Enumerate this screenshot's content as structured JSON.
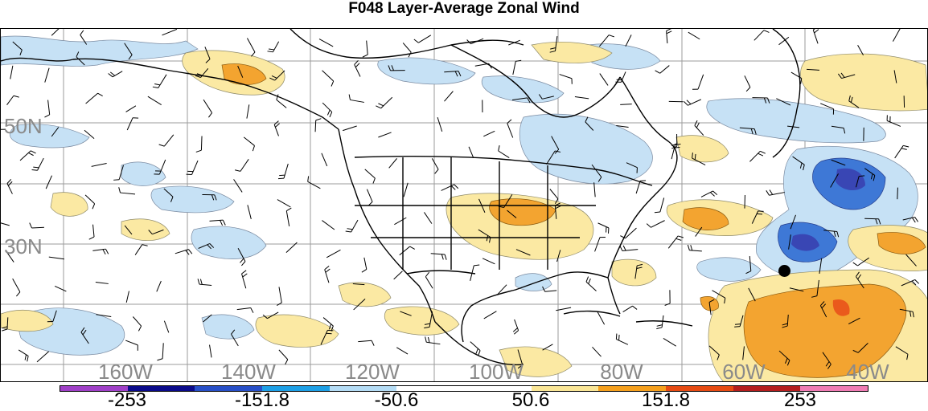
{
  "title": "F048 Layer-Average Zonal Wind",
  "latitude_labels": [
    "50N",
    "30N"
  ],
  "longitude_labels": [
    "160W",
    "140W",
    "120W",
    "100W",
    "80W",
    "60W",
    "40W"
  ],
  "colorbar": {
    "colors": [
      "#a040c8",
      "#0a0a8a",
      "#2850c8",
      "#1ea0e6",
      "#b4dcf5",
      "#ffffff",
      "#ffffff",
      "#fae696",
      "#f5a01e",
      "#e64b14",
      "#b41e1e",
      "#f07cb4"
    ],
    "labels": [
      "-253",
      "-151.8",
      "-50.6",
      "50.6",
      "151.8",
      "253"
    ]
  },
  "map_colors": {
    "light_blue": "#c6e1f5",
    "mid_blue": "#7fb6ec",
    "blue": "#3e78d6",
    "dark_blue": "#3946b4",
    "light_yellow": "#fbe9a3",
    "orange": "#f3a430",
    "red_orange": "#ea5a1c",
    "land_lines": "#000000",
    "grid": "#9b9b9b"
  },
  "marker": "filled-circle"
}
